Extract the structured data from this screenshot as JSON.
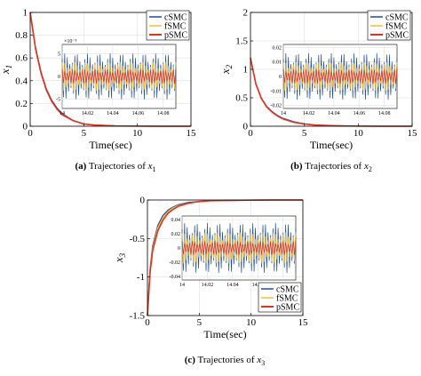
{
  "series_colors": {
    "cSMC": "#1f4e9c",
    "fSMC": "#f2c12e",
    "pSMC": "#e63020"
  },
  "chart_data": [
    {
      "id": "a",
      "type": "line",
      "caption_prefix": "(a)",
      "caption_text": "Trajectories of",
      "caption_var": "x",
      "caption_sub": "1",
      "ylabel_var": "x",
      "ylabel_sub": "1",
      "xlabel": "Time(sec)",
      "xlim": [
        0,
        15
      ],
      "ylim": [
        0,
        1
      ],
      "xticks": [
        "0",
        "5",
        "10",
        "15"
      ],
      "yticks": [
        "0",
        "0.2",
        "0.4",
        "0.6",
        "0.8",
        "1"
      ],
      "series": [
        {
          "name": "cSMC",
          "x": [
            0,
            0.5,
            1,
            1.5,
            2,
            2.5,
            3,
            4,
            5,
            6,
            8,
            10,
            12,
            15
          ],
          "values": [
            1.0,
            0.69,
            0.48,
            0.33,
            0.23,
            0.16,
            0.11,
            0.05,
            0.02,
            0.01,
            0.003,
            0.001,
            0.0,
            0.0
          ]
        },
        {
          "name": "fSMC",
          "x": [
            0,
            0.5,
            1,
            1.5,
            2,
            2.5,
            3,
            4,
            5,
            6,
            8,
            10,
            12,
            15
          ],
          "values": [
            1.0,
            0.68,
            0.47,
            0.32,
            0.22,
            0.15,
            0.1,
            0.05,
            0.02,
            0.01,
            0.003,
            0.001,
            0.0,
            0.0
          ]
        },
        {
          "name": "pSMC",
          "x": [
            0,
            0.5,
            1,
            1.5,
            2,
            2.5,
            3,
            4,
            5,
            6,
            8,
            10,
            12,
            15
          ],
          "values": [
            1.0,
            0.68,
            0.47,
            0.32,
            0.22,
            0.15,
            0.1,
            0.05,
            0.02,
            0.01,
            0.003,
            0.001,
            0.0,
            0.0
          ]
        }
      ],
      "legend": "top-right",
      "inset": {
        "exponent": "×10⁻³",
        "xlim": [
          14,
          14.09
        ],
        "xticks": [
          "14",
          "14.02",
          "14.04",
          "14.06",
          "14.08"
        ],
        "yticks": [
          "5",
          "0",
          "-5"
        ],
        "amplitudes": {
          "cSMC": 5,
          "fSMC": 3.2,
          "pSMC": 1.6
        },
        "ylim": [
          -7,
          7
        ]
      }
    },
    {
      "id": "b",
      "type": "line",
      "caption_prefix": "(b)",
      "caption_text": "Trajectories of",
      "caption_var": "x",
      "caption_sub": "2",
      "ylabel_var": "x",
      "ylabel_sub": "2",
      "xlabel": "Time(sec)",
      "xlim": [
        0,
        15
      ],
      "ylim": [
        0,
        2
      ],
      "xticks": [
        "0",
        "5",
        "10",
        "15"
      ],
      "yticks": [
        "0",
        "0.5",
        "1",
        "1.5",
        "2"
      ],
      "series": [
        {
          "name": "cSMC",
          "x": [
            0,
            0.5,
            1,
            1.5,
            2,
            2.5,
            3,
            4,
            5,
            6,
            8,
            10,
            12,
            15
          ],
          "values": [
            1.2,
            0.75,
            0.5,
            0.35,
            0.26,
            0.19,
            0.14,
            0.08,
            0.04,
            0.02,
            0.008,
            0.003,
            0.0,
            0.0
          ]
        },
        {
          "name": "fSMC",
          "x": [
            0,
            0.5,
            1,
            1.5,
            2,
            2.5,
            3,
            4,
            5,
            6,
            8,
            10,
            12,
            15
          ],
          "values": [
            1.2,
            0.74,
            0.49,
            0.34,
            0.25,
            0.18,
            0.13,
            0.07,
            0.04,
            0.02,
            0.007,
            0.002,
            0.0,
            0.0
          ]
        },
        {
          "name": "pSMC",
          "x": [
            0,
            0.5,
            1,
            1.5,
            2,
            2.5,
            3,
            4,
            5,
            6,
            8,
            10,
            12,
            15
          ],
          "values": [
            1.2,
            0.74,
            0.49,
            0.34,
            0.25,
            0.18,
            0.13,
            0.07,
            0.04,
            0.02,
            0.007,
            0.002,
            0.0,
            0.0
          ]
        }
      ],
      "legend": "top-right",
      "inset": {
        "exponent": "",
        "xlim": [
          14,
          14.09
        ],
        "xticks": [
          "14",
          "14.02",
          "14.04",
          "14.06",
          "14.08"
        ],
        "yticks": [
          "0.02",
          "0.01",
          "0",
          "-0.01",
          "-0.02"
        ],
        "amplitudes": {
          "cSMC": 0.016,
          "fSMC": 0.01,
          "pSMC": 0.005
        },
        "ylim": [
          -0.022,
          0.022
        ]
      }
    },
    {
      "id": "c",
      "type": "line",
      "caption_prefix": "(c)",
      "caption_text": "Trajectories of",
      "caption_var": "x",
      "caption_sub": "3",
      "ylabel_var": "x",
      "ylabel_sub": "3",
      "xlabel": "Time(sec)",
      "xlim": [
        0,
        15
      ],
      "ylim": [
        -1.5,
        0
      ],
      "xticks": [
        "0",
        "5",
        "10",
        "15"
      ],
      "yticks": [
        "-1.5",
        "-1",
        "-0.5",
        "0"
      ],
      "series": [
        {
          "name": "cSMC",
          "x": [
            0,
            0.25,
            0.5,
            1,
            1.5,
            2,
            2.5,
            3,
            4,
            5,
            6,
            8,
            10,
            12,
            15
          ],
          "values": [
            -1.5,
            -0.9,
            -0.6,
            -0.33,
            -0.2,
            -0.13,
            -0.09,
            -0.06,
            -0.03,
            -0.02,
            -0.01,
            -0.005,
            -0.002,
            0.0,
            0.0
          ]
        },
        {
          "name": "fSMC",
          "x": [
            0,
            0.25,
            0.5,
            1,
            1.5,
            2,
            2.5,
            3,
            4,
            5,
            6,
            8,
            10,
            12,
            15
          ],
          "values": [
            -1.5,
            -0.93,
            -0.63,
            -0.36,
            -0.23,
            -0.15,
            -0.1,
            -0.07,
            -0.04,
            -0.02,
            -0.01,
            -0.005,
            -0.002,
            0.0,
            0.0
          ]
        },
        {
          "name": "pSMC",
          "x": [
            0,
            0.25,
            0.5,
            1,
            1.5,
            2,
            2.5,
            3,
            4,
            5,
            6,
            8,
            10,
            12,
            15
          ],
          "values": [
            -1.5,
            -0.95,
            -0.66,
            -0.4,
            -0.26,
            -0.17,
            -0.12,
            -0.08,
            -0.04,
            -0.02,
            -0.01,
            -0.005,
            -0.002,
            0.0,
            0.0
          ]
        }
      ],
      "legend": "bottom-right",
      "inset": {
        "exponent": "",
        "xlim": [
          14,
          14.09
        ],
        "xticks": [
          "14",
          "14.02",
          "14.04",
          "14.06",
          "14.08"
        ],
        "yticks": [
          "0.04",
          "0.02",
          "0",
          "-0.02",
          "-0.04"
        ],
        "amplitudes": {
          "cSMC": 0.035,
          "fSMC": 0.022,
          "pSMC": 0.01
        },
        "ylim": [
          -0.045,
          0.045
        ]
      }
    }
  ]
}
